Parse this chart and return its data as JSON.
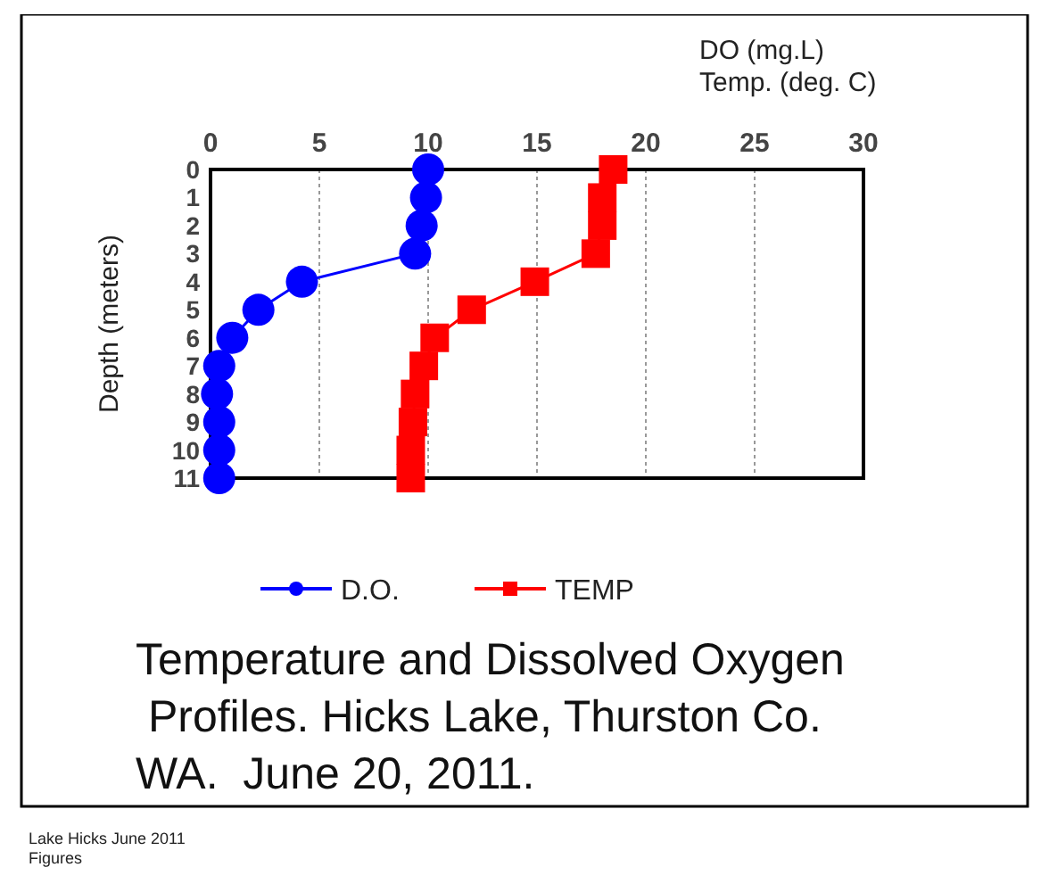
{
  "chart_data": {
    "type": "line",
    "title": "Temperature and Dissolved Oxygen\n Profiles. Hicks Lake, Thurston Co.\nWA.  June 20, 2011.",
    "xlabel": "DO (mg.L)\nTemp. (deg. C)",
    "ylabel": "Depth (meters)",
    "xlim": [
      0,
      30
    ],
    "xticks": [
      0,
      5,
      10,
      15,
      20,
      25,
      30
    ],
    "ylim": [
      11,
      0
    ],
    "yticks": [
      0,
      1,
      2,
      3,
      4,
      5,
      6,
      7,
      8,
      9,
      10,
      11
    ],
    "grid": "x",
    "legend": "bottom",
    "annotations": [
      "Lake Hicks June 2011\nFigures"
    ],
    "series": [
      {
        "name": "D.O.",
        "color": "#0000ff",
        "marker": "circle",
        "x": [
          10.0,
          9.9,
          9.7,
          9.4,
          4.2,
          2.2,
          1.0,
          0.4,
          0.3,
          0.4,
          0.4,
          0.4
        ],
        "values": [
          0,
          1,
          2,
          3,
          4,
          5,
          6,
          7,
          8,
          9,
          10,
          11
        ]
      },
      {
        "name": "TEMP",
        "color": "#ff0000",
        "marker": "square",
        "x": [
          18.5,
          18.0,
          18.0,
          17.7,
          14.9,
          12.0,
          10.3,
          9.8,
          9.4,
          9.3,
          9.2,
          9.2
        ],
        "values": [
          0,
          1,
          2,
          3,
          4,
          5,
          6,
          7,
          8,
          9,
          10,
          11
        ]
      }
    ]
  }
}
